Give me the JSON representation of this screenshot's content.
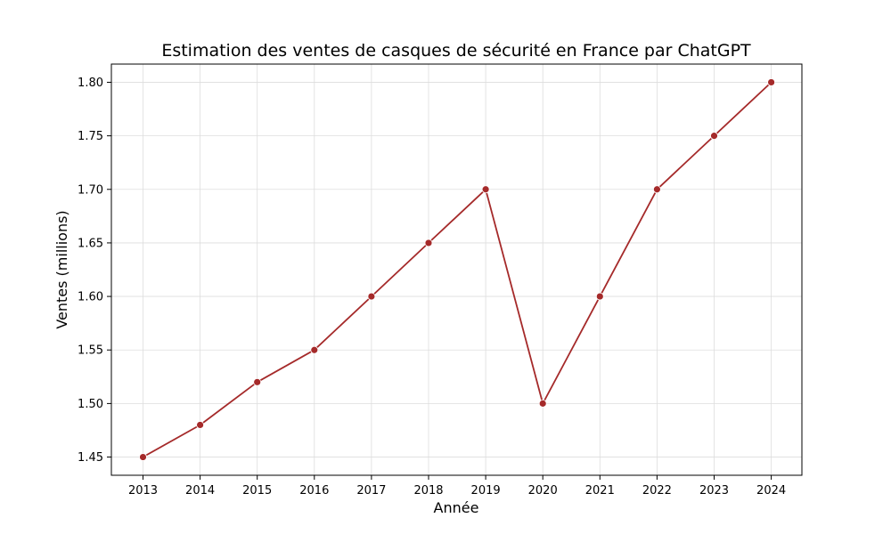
{
  "chart_data": {
    "type": "line",
    "title": "Estimation des ventes de casques de sécurité en France par ChatGPT",
    "xlabel": "Année",
    "ylabel": "Ventes (millions)",
    "x": [
      "2013",
      "2014",
      "2015",
      "2016",
      "2017",
      "2018",
      "2019",
      "2020",
      "2021",
      "2022",
      "2023",
      "2024"
    ],
    "series": [
      {
        "values": [
          1.45,
          1.48,
          1.52,
          1.55,
          1.6,
          1.65,
          1.7,
          1.5,
          1.6,
          1.7,
          1.75,
          1.8
        ]
      }
    ],
    "ylim": [
      1.433,
      1.817
    ],
    "yticks": [
      "1.45",
      "1.50",
      "1.55",
      "1.60",
      "1.65",
      "1.70",
      "1.75",
      "1.80"
    ],
    "grid": true,
    "legend": "none",
    "colors": {
      "line": "#a52a2a",
      "grid": "#dddddd",
      "axis": "#000000"
    }
  }
}
